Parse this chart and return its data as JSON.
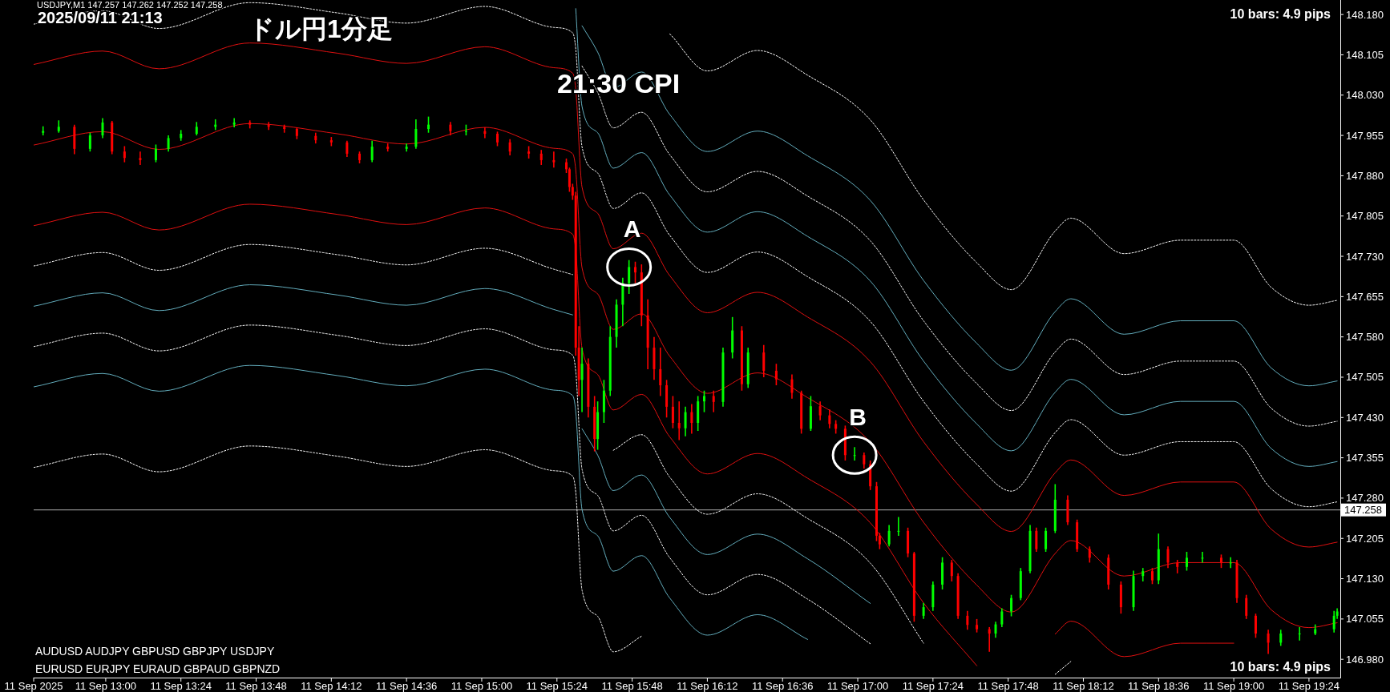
{
  "chart_data": {
    "type": "candlestick",
    "title": "ドル円1分足",
    "subtitle": "2025/09/11 21:13",
    "annotations": [
      "USDJPY,M1  147.257 147.262 147.252 147.258",
      "10 bars: 4.9 pips",
      "10 bars: 4.9 pips",
      "AUDUSD AUDJPY  GBPUSD GBPJPY  USDJPY",
      "EURUSD EURJPY  EURAUD GBPAUD GBPNZD",
      "21:30 CPI",
      {
        "text": "A",
        "x": "2025-09-11T15:47",
        "y": 147.71
      },
      {
        "text": "B",
        "x": "2025-09-11T16:59",
        "y": 147.36
      }
    ],
    "xlim": [
      "2025-09-11T12:37",
      "2025-09-11T19:34"
    ],
    "ylim": [
      146.946,
      148.207
    ],
    "xticks": [
      {
        "value": "2025-09-11T12:37",
        "label": "11 Sep 2025"
      },
      {
        "value": "2025-09-11T13:00",
        "label": "11 Sep 13:00"
      },
      {
        "value": "2025-09-11T13:24",
        "label": "11 Sep 13:24"
      },
      {
        "value": "2025-09-11T13:48",
        "label": "11 Sep 13:48"
      },
      {
        "value": "2025-09-11T14:12",
        "label": "11 Sep 14:12"
      },
      {
        "value": "2025-09-11T14:36",
        "label": "11 Sep 14:36"
      },
      {
        "value": "2025-09-11T15:00",
        "label": "11 Sep 15:00"
      },
      {
        "value": "2025-09-11T15:24",
        "label": "11 Sep 15:24"
      },
      {
        "value": "2025-09-11T15:48",
        "label": "11 Sep 15:48"
      },
      {
        "value": "2025-09-11T16:12",
        "label": "11 Sep 16:12"
      },
      {
        "value": "2025-09-11T16:36",
        "label": "11 Sep 16:36"
      },
      {
        "value": "2025-09-11T17:00",
        "label": "11 Sep 17:00"
      },
      {
        "value": "2025-09-11T17:24",
        "label": "11 Sep 17:24"
      },
      {
        "value": "2025-09-11T17:48",
        "label": "11 Sep 17:48"
      },
      {
        "value": "2025-09-11T18:12",
        "label": "11 Sep 18:12"
      },
      {
        "value": "2025-09-11T18:36",
        "label": "11 Sep 18:36"
      },
      {
        "value": "2025-09-11T19:00",
        "label": "11 Sep 19:00"
      },
      {
        "value": "2025-09-11T19:24",
        "label": "11 Sep 19:24"
      }
    ],
    "yticks": [
      {
        "value": 148.18,
        "label": "148.180"
      },
      {
        "value": 148.105,
        "label": "148.105"
      },
      {
        "value": 148.03,
        "label": "148.030"
      },
      {
        "value": 147.955,
        "label": "147.955"
      },
      {
        "value": 147.88,
        "label": "147.880"
      },
      {
        "value": 147.805,
        "label": "147.805"
      },
      {
        "value": 147.73,
        "label": "147.730"
      },
      {
        "value": 147.655,
        "label": "147.655"
      },
      {
        "value": 147.58,
        "label": "147.580"
      },
      {
        "value": 147.505,
        "label": "147.505"
      },
      {
        "value": 147.43,
        "label": "147.430"
      },
      {
        "value": 147.355,
        "label": "147.355"
      },
      {
        "value": 147.28,
        "label": "147.280"
      },
      {
        "value": 147.205,
        "label": "147.205"
      },
      {
        "value": 147.13,
        "label": "147.130"
      },
      {
        "value": 147.055,
        "label": "147.055"
      },
      {
        "value": 146.98,
        "label": "146.980"
      }
    ],
    "ref_lines": [
      {
        "axis": "y",
        "value": 147.258,
        "label": "147.258",
        "color": "#b0b0b0"
      }
    ],
    "x": [
      "2025-09-11T12:37",
      "2025-09-11T12:59",
      "2025-09-11T13:17",
      "2025-09-11T13:46",
      "2025-09-11T14:14",
      "2025-09-11T14:36",
      "2025-09-11T15:01",
      "2025-09-11T15:23",
      "2025-09-11T15:29",
      "2025-09-11T15:30",
      "2025-09-11T15:32",
      "2025-09-11T15:37",
      "2025-09-11T15:42",
      "2025-09-11T15:51",
      "2025-09-11T16:00",
      "2025-09-11T16:12",
      "2025-09-11T16:28",
      "2025-09-11T16:44",
      "2025-09-11T17:04",
      "2025-09-11T17:21",
      "2025-09-11T17:38",
      "2025-09-11T17:49",
      "2025-09-11T18:03",
      "2025-09-11T18:08",
      "2025-09-11T18:25",
      "2025-09-11T18:43",
      "2025-09-11T19:00",
      "2025-09-11T19:12",
      "2025-09-11T19:24",
      "2025-09-11T19:33"
    ],
    "series": [
      {
        "type": "line",
        "color": "#e01010",
        "line_style": "solid",
        "values": [
          147.937,
          147.962,
          147.929,
          147.977,
          147.958,
          147.939,
          147.97,
          147.931,
          147.921,
          147.891,
          147.709,
          147.66,
          147.594,
          147.623,
          147.544,
          147.475,
          147.513,
          147.467,
          147.384,
          147.235,
          147.118,
          147.068,
          147.177,
          147.201,
          147.135,
          147.16,
          147.16,
          147.072,
          147.039,
          147.048
        ]
      },
      {
        "type": "line",
        "color": "#e01010",
        "line_style": "solid",
        "values": [
          148.087,
          148.112,
          148.079,
          148.127,
          148.108,
          148.089,
          148.12,
          148.081,
          148.071,
          148.041,
          147.859,
          147.81,
          147.744,
          147.773,
          147.694,
          147.625,
          147.663,
          147.617,
          147.534,
          147.385,
          147.268,
          147.218,
          147.327,
          147.351,
          147.285,
          147.31,
          147.31,
          147.222,
          147.189,
          147.198
        ]
      },
      {
        "type": "line",
        "color": "#e01010",
        "line_style": "solid",
        "values": [
          147.787,
          147.812,
          147.779,
          147.827,
          147.808,
          147.789,
          147.82,
          147.781,
          147.771,
          147.741,
          147.559,
          147.51,
          147.444,
          147.473,
          147.394,
          147.325,
          147.363,
          147.317,
          147.234,
          147.085,
          146.968,
          null,
          147.027,
          147.051,
          146.985,
          147.01,
          147.01,
          null,
          null,
          null
        ]
      },
      {
        "type": "line",
        "color": "#ffffff",
        "line_style": "dotted",
        "values": [
          148.162,
          148.187,
          148.154,
          148.202,
          148.183,
          148.164,
          148.195,
          148.156,
          148.146,
          148.116,
          147.934,
          147.885,
          147.819,
          147.848,
          147.769,
          147.7,
          147.738,
          147.692,
          147.609,
          147.46,
          147.343,
          147.293,
          147.402,
          147.426,
          147.36,
          147.385,
          147.385,
          147.297,
          147.264,
          147.273
        ]
      },
      {
        "type": "line",
        "color": "#ffffff",
        "line_style": "dotted",
        "values": [
          147.712,
          147.737,
          147.704,
          147.752,
          147.733,
          147.714,
          147.745,
          147.706,
          147.696,
          null,
          null,
          null,
          147.369,
          147.398,
          147.319,
          147.25,
          147.288,
          147.242,
          147.159,
          147.01,
          null,
          null,
          146.952,
          146.976,
          null,
          null,
          null,
          null,
          null,
          null
        ]
      },
      {
        "type": "line",
        "color": "#63adbd",
        "line_style": "solid",
        "values": [
          null,
          null,
          null,
          null,
          null,
          null,
          null,
          null,
          null,
          148.191,
          148.009,
          147.96,
          147.894,
          147.923,
          147.844,
          147.775,
          147.813,
          147.767,
          147.684,
          147.535,
          147.418,
          147.368,
          147.477,
          147.501,
          147.435,
          147.46,
          147.46,
          147.372,
          147.339,
          147.348
        ]
      },
      {
        "type": "line",
        "color": "#63adbd",
        "line_style": "solid",
        "values": [
          147.637,
          147.662,
          147.629,
          147.677,
          147.658,
          147.639,
          147.67,
          147.631,
          147.621,
          null,
          147.409,
          147.36,
          147.294,
          147.323,
          147.244,
          147.175,
          147.213,
          147.167,
          147.084,
          null,
          null,
          null,
          null,
          null,
          null,
          null,
          null,
          null,
          null,
          null
        ]
      },
      {
        "type": "line",
        "color": "#ffffff",
        "line_style": "dotted",
        "values": [
          null,
          null,
          null,
          null,
          null,
          null,
          null,
          null,
          null,
          null,
          148.084,
          148.035,
          147.969,
          147.998,
          147.919,
          147.85,
          147.888,
          147.842,
          147.759,
          147.61,
          147.493,
          147.443,
          147.552,
          147.576,
          147.51,
          147.535,
          147.535,
          147.447,
          147.414,
          147.423
        ]
      },
      {
        "type": "line",
        "color": "#ffffff",
        "line_style": "dotted",
        "values": [
          147.562,
          147.587,
          147.554,
          147.602,
          147.583,
          147.564,
          147.595,
          147.556,
          147.546,
          147.516,
          147.334,
          147.285,
          147.219,
          147.248,
          147.169,
          147.1,
          147.138,
          147.092,
          147.009,
          null,
          null,
          null,
          null,
          null,
          null,
          null,
          null,
          null,
          null,
          null
        ]
      },
      {
        "type": "line",
        "color": "#63adbd",
        "line_style": "solid",
        "values": [
          null,
          null,
          null,
          null,
          null,
          null,
          null,
          null,
          null,
          null,
          148.159,
          148.11,
          148.044,
          148.073,
          147.994,
          147.925,
          147.963,
          147.917,
          147.834,
          147.685,
          147.568,
          147.518,
          147.627,
          147.651,
          147.585,
          147.61,
          147.61,
          147.522,
          147.489,
          147.498
        ]
      },
      {
        "type": "line",
        "color": "#63adbd",
        "line_style": "solid",
        "values": [
          147.487,
          147.512,
          147.479,
          147.527,
          147.508,
          147.489,
          147.52,
          147.481,
          147.471,
          147.441,
          147.259,
          147.21,
          147.144,
          147.173,
          147.094,
          147.025,
          147.063,
          147.017,
          null,
          null,
          null,
          null,
          null,
          null,
          null,
          null,
          null,
          null,
          null,
          null
        ]
      },
      {
        "type": "line",
        "color": "#ffffff",
        "line_style": "dotted",
        "values": [
          null,
          null,
          null,
          null,
          null,
          null,
          null,
          null,
          null,
          null,
          null,
          null,
          null,
          null,
          148.144,
          148.075,
          148.113,
          148.067,
          147.984,
          147.835,
          147.718,
          147.668,
          147.777,
          147.801,
          147.735,
          147.76,
          147.76,
          147.672,
          147.639,
          147.648
        ]
      },
      {
        "type": "line",
        "color": "#ffffff",
        "line_style": "dotted",
        "values": [
          147.337,
          147.362,
          147.329,
          147.377,
          147.358,
          147.339,
          147.37,
          147.331,
          147.321,
          147.291,
          147.109,
          147.06,
          146.994,
          147.023,
          null,
          null,
          null,
          null,
          null,
          null,
          null,
          null,
          null,
          null,
          null,
          null,
          null,
          null,
          null,
          null
        ]
      },
      {
        "x": [
          "2025-09-11T12:40",
          "2025-09-11T12:45",
          "2025-09-11T12:50",
          "2025-09-11T12:55",
          "2025-09-11T12:59",
          "2025-09-11T13:02",
          "2025-09-11T13:06",
          "2025-09-11T13:11",
          "2025-09-11T13:16",
          "2025-09-11T13:20",
          "2025-09-11T13:24",
          "2025-09-11T13:29",
          "2025-09-11T13:35",
          "2025-09-11T13:41",
          "2025-09-11T13:46",
          "2025-09-11T13:52",
          "2025-09-11T13:57",
          "2025-09-11T14:01",
          "2025-09-11T14:07",
          "2025-09-11T14:12",
          "2025-09-11T14:17",
          "2025-09-11T14:21",
          "2025-09-11T14:25",
          "2025-09-11T14:30",
          "2025-09-11T14:36",
          "2025-09-11T14:39",
          "2025-09-11T14:43",
          "2025-09-11T14:50",
          "2025-09-11T14:55",
          "2025-09-11T15:01",
          "2025-09-11T15:05",
          "2025-09-11T15:09",
          "2025-09-11T15:15",
          "2025-09-11T15:19",
          "2025-09-11T15:23",
          "2025-09-11T15:27",
          "2025-09-11T15:28",
          "2025-09-11T15:29",
          "2025-09-11T15:30",
          "2025-09-11T15:31",
          "2025-09-11T15:32",
          "2025-09-11T15:34",
          "2025-09-11T15:36",
          "2025-09-11T15:37",
          "2025-09-11T15:39",
          "2025-09-11T15:41",
          "2025-09-11T15:43",
          "2025-09-11T15:45",
          "2025-09-11T15:47",
          "2025-09-11T15:49",
          "2025-09-11T15:51",
          "2025-09-11T15:53",
          "2025-09-11T15:55",
          "2025-09-11T15:57",
          "2025-09-11T15:59",
          "2025-09-11T16:01",
          "2025-09-11T16:03",
          "2025-09-11T16:05",
          "2025-09-11T16:07",
          "2025-09-11T16:09",
          "2025-09-11T16:11",
          "2025-09-11T16:14",
          "2025-09-11T16:17",
          "2025-09-11T16:20",
          "2025-09-11T16:23",
          "2025-09-11T16:25",
          "2025-09-11T16:30",
          "2025-09-11T16:34",
          "2025-09-11T16:39",
          "2025-09-11T16:42",
          "2025-09-11T16:45",
          "2025-09-11T16:48",
          "2025-09-11T16:51",
          "2025-09-11T16:53",
          "2025-09-11T16:56",
          "2025-09-11T16:59",
          "2025-09-11T17:02",
          "2025-09-11T17:04",
          "2025-09-11T17:06",
          "2025-09-11T17:07",
          "2025-09-11T17:10",
          "2025-09-11T17:13",
          "2025-09-11T17:16",
          "2025-09-11T17:18",
          "2025-09-11T17:21",
          "2025-09-11T17:24",
          "2025-09-11T17:27",
          "2025-09-11T17:30",
          "2025-09-11T17:32",
          "2025-09-11T17:35",
          "2025-09-11T17:38",
          "2025-09-11T17:42",
          "2025-09-11T17:44",
          "2025-09-11T17:46",
          "2025-09-11T17:49",
          "2025-09-11T17:52",
          "2025-09-11T17:55",
          "2025-09-11T17:57",
          "2025-09-11T18:00",
          "2025-09-11T18:03",
          "2025-09-11T18:07",
          "2025-09-11T18:10",
          "2025-09-11T18:14",
          "2025-09-11T18:20",
          "2025-09-11T18:24",
          "2025-09-11T18:28",
          "2025-09-11T18:31",
          "2025-09-11T18:34",
          "2025-09-11T18:36",
          "2025-09-11T18:39",
          "2025-09-11T18:42",
          "2025-09-11T18:45",
          "2025-09-11T18:50",
          "2025-09-11T18:56",
          "2025-09-11T18:59",
          "2025-09-11T19:01",
          "2025-09-11T19:04",
          "2025-09-11T19:07",
          "2025-09-11T19:11",
          "2025-09-11T19:15",
          "2025-09-11T19:21",
          "2025-09-11T19:26",
          "2025-09-11T19:32",
          "2025-09-11T19:33"
        ],
        "ohlc": [
          [
            147.96,
            147.972,
            147.955,
            147.963
          ],
          [
            147.963,
            147.983,
            147.96,
            147.971
          ],
          [
            147.971,
            147.975,
            147.92,
            147.93
          ],
          [
            147.93,
            147.96,
            147.925,
            147.955
          ],
          [
            147.955,
            147.987,
            147.95,
            147.979
          ],
          [
            147.979,
            147.982,
            147.92,
            147.925
          ],
          [
            147.925,
            147.935,
            147.905,
            147.913
          ],
          [
            147.913,
            147.925,
            147.9,
            147.909
          ],
          [
            147.909,
            147.938,
            147.905,
            147.93
          ],
          [
            147.93,
            147.955,
            147.925,
            147.95
          ],
          [
            147.95,
            147.965,
            147.945,
            147.958
          ],
          [
            147.958,
            147.98,
            147.955,
            147.971
          ],
          [
            147.971,
            147.985,
            147.965,
            147.975
          ],
          [
            147.975,
            147.987,
            147.97,
            147.979
          ],
          [
            147.979,
            147.983,
            147.968,
            147.975
          ],
          [
            147.975,
            147.98,
            147.965,
            147.971
          ],
          [
            147.971,
            147.975,
            147.96,
            147.967
          ],
          [
            147.967,
            147.97,
            147.948,
            147.954
          ],
          [
            147.954,
            147.96,
            147.94,
            147.946
          ],
          [
            147.946,
            147.952,
            147.935,
            147.942
          ],
          [
            147.942,
            147.945,
            147.915,
            147.921
          ],
          [
            147.921,
            147.925,
            147.903,
            147.909
          ],
          [
            147.909,
            147.945,
            147.905,
            147.934
          ],
          [
            147.934,
            147.94,
            147.925,
            147.93
          ],
          [
            147.93,
            147.94,
            147.925,
            147.934
          ],
          [
            147.934,
            147.985,
            147.93,
            147.967
          ],
          [
            147.967,
            147.99,
            147.96,
            147.975
          ],
          [
            147.975,
            147.98,
            147.955,
            147.963
          ],
          [
            147.963,
            147.975,
            147.955,
            147.963
          ],
          [
            147.963,
            147.97,
            147.95,
            147.958
          ],
          [
            147.958,
            147.962,
            147.935,
            147.942
          ],
          [
            147.942,
            147.948,
            147.918,
            147.925
          ],
          [
            147.925,
            147.935,
            147.912,
            147.921
          ],
          [
            147.921,
            147.928,
            147.9,
            147.909
          ],
          [
            147.909,
            147.925,
            147.895,
            147.905
          ],
          [
            147.905,
            147.912,
            147.885,
            147.892
          ],
          [
            147.892,
            147.895,
            147.85,
            147.859
          ],
          [
            147.859,
            147.865,
            147.835,
            147.843
          ],
          [
            147.843,
            147.85,
            147.545,
            147.56
          ],
          [
            147.56,
            147.6,
            147.47,
            147.5
          ],
          [
            147.5,
            147.56,
            147.44,
            147.53
          ],
          [
            147.53,
            147.54,
            147.43,
            147.45
          ],
          [
            147.45,
            147.47,
            147.367,
            147.39
          ],
          [
            147.39,
            147.46,
            147.37,
            147.44
          ],
          [
            147.44,
            147.5,
            147.42,
            147.48
          ],
          [
            147.48,
            147.6,
            147.47,
            147.58
          ],
          [
            147.58,
            147.65,
            147.56,
            147.64
          ],
          [
            147.64,
            147.69,
            147.6,
            147.68
          ],
          [
            147.68,
            147.723,
            147.66,
            147.71
          ],
          [
            147.71,
            147.72,
            147.68,
            147.7
          ],
          [
            147.7,
            147.715,
            147.6,
            147.62
          ],
          [
            147.62,
            147.65,
            147.52,
            147.56
          ],
          [
            147.56,
            147.58,
            147.5,
            147.52
          ],
          [
            147.52,
            147.56,
            147.47,
            147.49
          ],
          [
            147.49,
            147.5,
            147.43,
            147.45
          ],
          [
            147.45,
            147.47,
            147.41,
            147.42
          ],
          [
            147.42,
            147.46,
            147.388,
            147.41
          ],
          [
            147.41,
            147.45,
            147.395,
            147.44
          ],
          [
            147.44,
            147.455,
            147.4,
            147.42
          ],
          [
            147.42,
            147.47,
            147.405,
            147.46
          ],
          [
            147.46,
            147.48,
            147.44,
            147.47
          ],
          [
            147.47,
            147.48,
            147.44,
            147.459
          ],
          [
            147.459,
            147.56,
            147.45,
            147.551
          ],
          [
            147.551,
            147.617,
            147.54,
            147.592
          ],
          [
            147.592,
            147.6,
            147.48,
            147.492
          ],
          [
            147.492,
            147.56,
            147.485,
            147.551
          ],
          [
            147.551,
            147.565,
            147.505,
            147.517
          ],
          [
            147.517,
            147.53,
            147.49,
            147.501
          ],
          [
            147.501,
            147.51,
            147.465,
            147.476
          ],
          [
            147.476,
            147.48,
            147.4,
            147.409
          ],
          [
            147.409,
            147.47,
            147.405,
            147.451
          ],
          [
            147.451,
            147.46,
            147.425,
            147.434
          ],
          [
            147.434,
            147.445,
            147.41,
            147.418
          ],
          [
            147.418,
            147.425,
            147.4,
            147.409
          ],
          [
            147.409,
            147.415,
            147.35,
            147.36
          ],
          [
            147.36,
            147.375,
            147.35,
            147.36
          ],
          [
            147.36,
            147.365,
            147.335,
            147.343
          ],
          [
            147.343,
            147.35,
            147.295,
            147.302
          ],
          [
            147.302,
            147.31,
            147.2,
            147.21
          ],
          [
            147.21,
            147.215,
            147.185,
            147.194
          ],
          [
            147.194,
            147.23,
            147.19,
            147.219
          ],
          [
            147.219,
            147.245,
            147.21,
            147.219
          ],
          [
            147.219,
            147.225,
            147.17,
            147.177
          ],
          [
            147.177,
            147.18,
            147.05,
            147.061
          ],
          [
            147.061,
            147.085,
            147.055,
            147.077
          ],
          [
            147.077,
            147.125,
            147.07,
            147.119
          ],
          [
            147.119,
            147.17,
            147.11,
            147.16
          ],
          [
            147.16,
            147.165,
            147.125,
            147.135
          ],
          [
            147.135,
            147.14,
            147.055,
            147.061
          ],
          [
            147.061,
            147.07,
            147.035,
            147.044
          ],
          [
            147.044,
            147.055,
            147.03,
            147.036
          ],
          [
            147.036,
            147.04,
            146.994,
            147.028
          ],
          [
            147.028,
            147.05,
            147.02,
            147.045
          ],
          [
            147.045,
            147.075,
            147.04,
            147.069
          ],
          [
            147.069,
            147.1,
            147.06,
            147.094
          ],
          [
            147.094,
            147.15,
            147.09,
            147.144
          ],
          [
            147.144,
            147.23,
            147.14,
            147.219
          ],
          [
            147.219,
            147.225,
            147.18,
            147.185
          ],
          [
            147.185,
            147.225,
            147.18,
            147.219
          ],
          [
            147.219,
            147.306,
            147.215,
            147.277
          ],
          [
            147.277,
            147.285,
            147.23,
            147.235
          ],
          [
            147.235,
            147.24,
            147.18,
            147.185
          ],
          [
            147.185,
            147.19,
            147.16,
            147.169
          ],
          [
            147.169,
            147.175,
            147.11,
            147.119
          ],
          [
            147.119,
            147.125,
            147.065,
            147.077
          ],
          [
            147.077,
            147.145,
            147.07,
            147.135
          ],
          [
            147.135,
            147.15,
            147.125,
            147.144
          ],
          [
            147.144,
            147.15,
            147.12,
            147.127
          ],
          [
            147.127,
            147.214,
            147.12,
            147.185
          ],
          [
            147.185,
            147.19,
            147.15,
            147.16
          ],
          [
            147.16,
            147.165,
            147.14,
            147.152
          ],
          [
            147.152,
            147.18,
            147.145,
            147.169
          ],
          [
            147.169,
            147.18,
            147.16,
            147.169
          ],
          [
            147.169,
            147.175,
            147.15,
            147.16
          ],
          [
            147.16,
            147.17,
            147.15,
            147.16
          ],
          [
            147.16,
            147.165,
            147.085,
            147.094
          ],
          [
            147.094,
            147.1,
            147.055,
            147.061
          ],
          [
            147.061,
            147.065,
            147.02,
            147.028
          ],
          [
            147.028,
            147.035,
            146.99,
            147.011
          ],
          [
            147.011,
            147.035,
            147.005,
            147.028
          ],
          [
            147.028,
            147.04,
            147.015,
            147.028
          ],
          [
            147.028,
            147.045,
            147.025,
            147.036
          ],
          [
            147.036,
            147.07,
            147.03,
            147.061
          ],
          [
            147.061,
            147.075,
            147.055,
            147.069
          ]
        ],
        "colors": [
          "#00ff00",
          "#00ff00",
          "#ff0000",
          "#00ff00",
          "#00ff00",
          "#ff0000",
          "#ff0000",
          "#ff0000",
          "#00ff00",
          "#00ff00",
          "#00ff00",
          "#00ff00",
          "#00ff00",
          "#00ff00",
          "#ff0000",
          "#ff0000",
          "#ff0000",
          "#ff0000",
          "#ff0000",
          "#ff0000",
          "#ff0000",
          "#ff0000",
          "#00ff00",
          "#ff0000",
          "#00ff00",
          "#00ff00",
          "#00ff00",
          "#ff0000",
          "#00ff00",
          "#ff0000",
          "#ff0000",
          "#ff0000",
          "#ff0000",
          "#ff0000",
          "#ff0000",
          "#ff0000",
          "#ff0000",
          "#ff0000",
          "#ff0000",
          "#ff0000",
          "#00ff00",
          "#ff0000",
          "#ff0000",
          "#00ff00",
          "#00ff00",
          "#00ff00",
          "#00ff00",
          "#00ff00",
          "#00ff00",
          "#ff0000",
          "#ff0000",
          "#ff0000",
          "#ff0000",
          "#ff0000",
          "#ff0000",
          "#ff0000",
          "#ff0000",
          "#00ff00",
          "#ff0000",
          "#00ff00",
          "#00ff00",
          "#ff0000",
          "#00ff00",
          "#00ff00",
          "#ff0000",
          "#00ff00",
          "#ff0000",
          "#ff0000",
          "#ff0000",
          "#ff0000",
          "#00ff00",
          "#ff0000",
          "#ff0000",
          "#ff0000",
          "#ff0000",
          "#00ff00",
          "#ff0000",
          "#ff0000",
          "#ff0000",
          "#ff0000",
          "#00ff00",
          "#00ff00",
          "#ff0000",
          "#ff0000",
          "#00ff00",
          "#00ff00",
          "#00ff00",
          "#ff0000",
          "#ff0000",
          "#ff0000",
          "#ff0000",
          "#ff0000",
          "#00ff00",
          "#00ff00",
          "#00ff00",
          "#00ff00",
          "#00ff00",
          "#ff0000",
          "#00ff00",
          "#00ff00",
          "#ff0000",
          "#ff0000",
          "#ff0000",
          "#ff0000",
          "#ff0000",
          "#00ff00",
          "#00ff00",
          "#ff0000",
          "#00ff00",
          "#ff0000",
          "#ff0000",
          "#00ff00",
          "#00ff00",
          "#ff0000",
          "#00ff00",
          "#ff0000",
          "#ff0000",
          "#ff0000",
          "#ff0000",
          "#00ff00",
          "#00ff00",
          "#00ff00",
          "#00ff00",
          "#00ff00"
        ]
      }
    ]
  }
}
